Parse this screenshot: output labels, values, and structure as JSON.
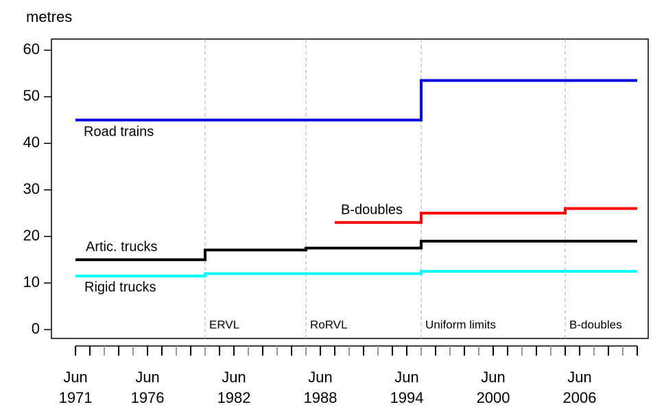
{
  "chart_data": {
    "type": "line",
    "y_label": "metres",
    "xlim": [
      1969.83,
      2011.26
    ],
    "ylim": [
      -1.9,
      62.4
    ],
    "yticks": [
      0,
      10,
      20,
      30,
      40,
      50,
      60
    ],
    "xticks": [
      {
        "value": 1971.5,
        "label": "Jun 1971"
      },
      {
        "value": 1976.5,
        "label": "Jun 1976"
      },
      {
        "value": 1982.5,
        "label": "Jun 1982"
      },
      {
        "value": 1988.5,
        "label": "Jun 1988"
      },
      {
        "value": 1994.5,
        "label": "Jun 1994"
      },
      {
        "value": 2000.5,
        "label": "Jun 2000"
      },
      {
        "value": 2006.5,
        "label": "Jun 2006"
      }
    ],
    "xminorticks": [
      1972.5,
      1973.5,
      1974.5,
      1975.5,
      1977.5,
      1978.5,
      1979.5,
      1980.5,
      1981.5,
      1983.5,
      1984.5,
      1985.5,
      1986.5,
      1987.5,
      1989.5,
      1990.5,
      1991.5,
      1992.5,
      1993.5,
      1995.5,
      1996.5,
      1997.5,
      1998.5,
      1999.5,
      2001.5,
      2002.5,
      2003.5,
      2004.5,
      2005.5,
      2007.5,
      2008.5,
      2009.5,
      2010.5
    ],
    "series": [
      {
        "name": "Road trains",
        "color": "#0000dd",
        "x": [
          1971.5,
          1995.5,
          1995.5,
          2010.5
        ],
        "values": [
          45,
          45,
          53.5,
          53.5
        ]
      },
      {
        "name": "B-doubles",
        "color": "#ff0000",
        "x": [
          1989.5,
          1995.5,
          1995.5,
          2005.5,
          2005.5,
          2010.5
        ],
        "values": [
          23,
          23,
          25,
          25,
          26,
          26
        ]
      },
      {
        "name": "Artic. trucks",
        "color": "#000000",
        "x": [
          1971.5,
          1980.5,
          1980.5,
          1987.5,
          1987.5,
          1995.5,
          1995.5,
          2010.5
        ],
        "values": [
          15,
          15,
          17.1,
          17.1,
          17.5,
          17.5,
          19,
          19
        ]
      },
      {
        "name": "Rigid trucks",
        "color": "#00ffff",
        "x": [
          1971.5,
          1980.5,
          1980.5,
          1995.5,
          1995.5,
          2010.5
        ],
        "values": [
          11.5,
          11.5,
          12,
          12,
          12.5,
          12.5
        ]
      }
    ],
    "events": [
      {
        "x": 1980.5,
        "label": "ERVL"
      },
      {
        "x": 1987.5,
        "label": "RoRVL"
      },
      {
        "x": 1995.5,
        "label": "Uniform limits"
      },
      {
        "x": 2005.5,
        "label": "B-doubles"
      }
    ]
  }
}
